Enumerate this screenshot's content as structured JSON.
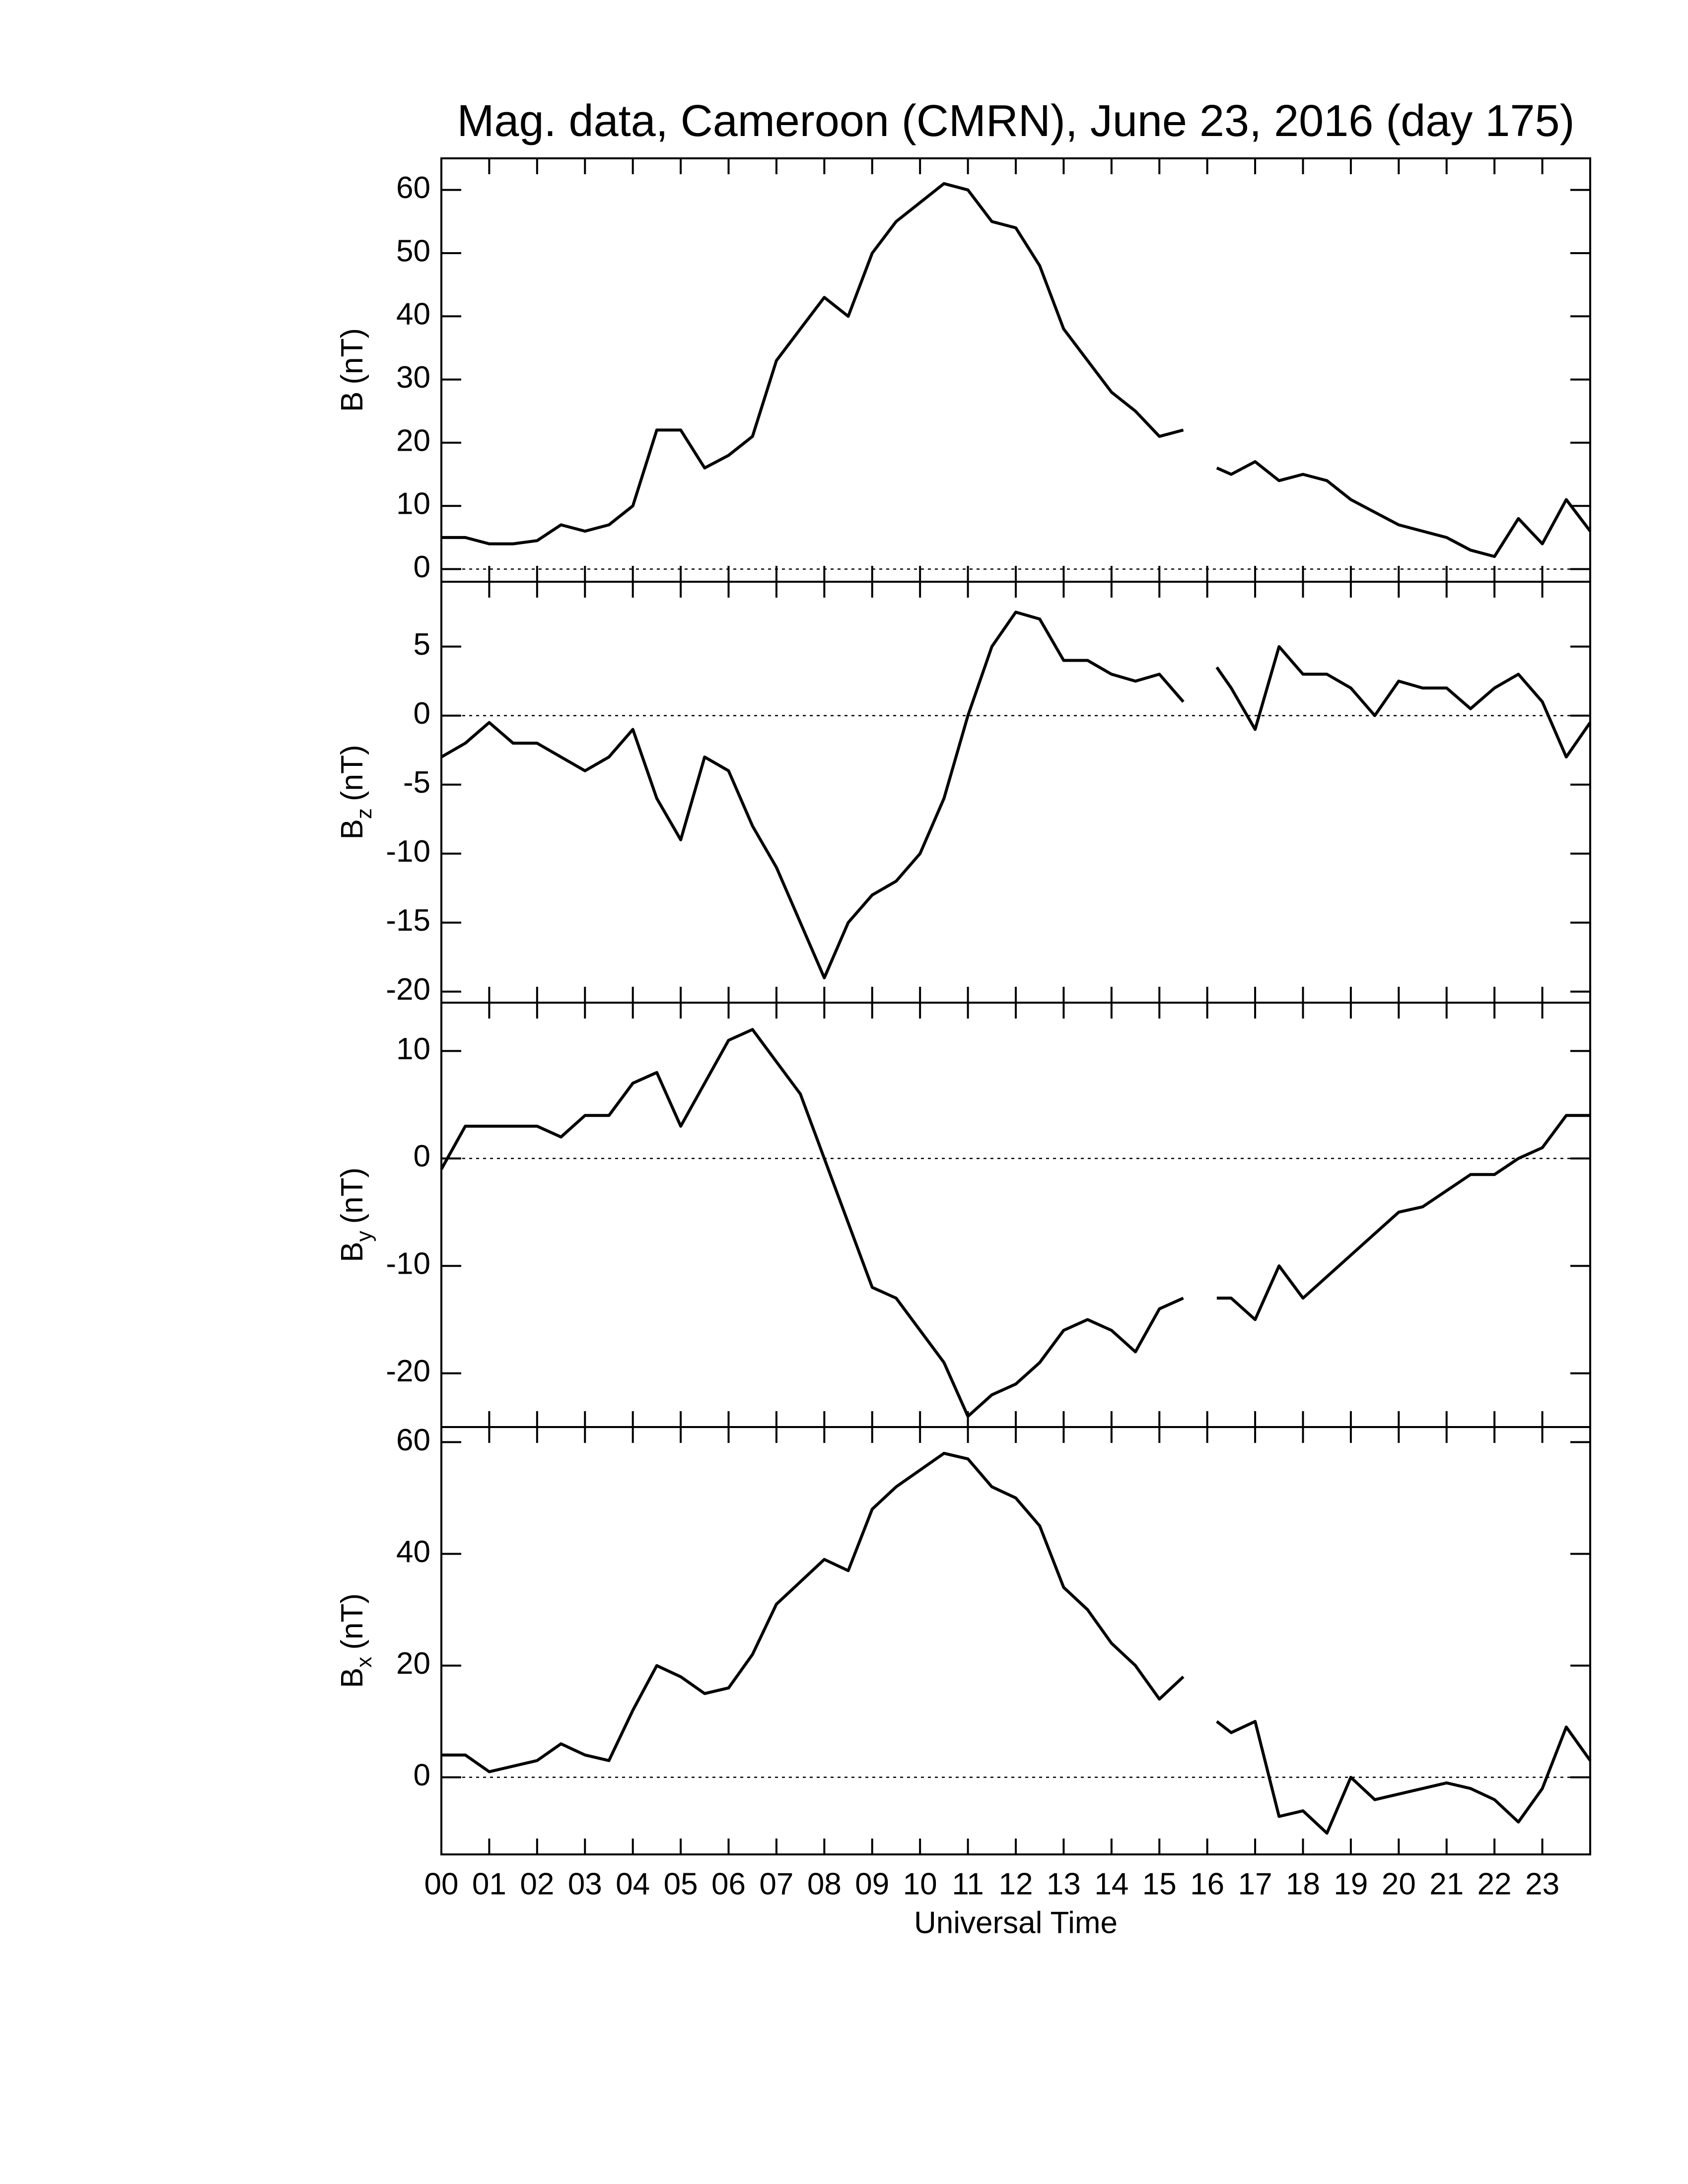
{
  "chart_data": [
    {
      "type": "line",
      "title": "Mag. data, Cameroon (CMRN), June 23, 2016 (day 175)",
      "ylabel": "B",
      "yunit": "(nT)",
      "color": "#000000",
      "x": [
        0,
        0.5,
        1,
        1.5,
        2,
        2.5,
        3,
        3.5,
        4,
        4.5,
        5,
        5.5,
        6,
        6.5,
        7,
        7.5,
        8,
        8.5,
        9,
        9.5,
        10,
        10.5,
        11,
        11.5,
        12,
        12.5,
        13,
        13.5,
        14,
        14.5,
        15,
        15.5,
        15.8,
        16.2,
        16.5,
        17,
        17.5,
        18,
        18.5,
        19,
        19.5,
        20,
        20.5,
        21,
        21.5,
        22,
        22.5,
        23,
        23.5,
        24
      ],
      "values": [
        5,
        5,
        4,
        4,
        4.5,
        7,
        6,
        7,
        10,
        22,
        22,
        16,
        18,
        21,
        33,
        38,
        43,
        40,
        50,
        55,
        58,
        61,
        60,
        55,
        54,
        48,
        38,
        33,
        28,
        25,
        21,
        22,
        null,
        16,
        15,
        17,
        14,
        15,
        14,
        11,
        9,
        7,
        6,
        5,
        3,
        2,
        8,
        4,
        11,
        6
      ],
      "xlim": [
        0,
        24
      ],
      "xticks": [
        0,
        1,
        2,
        3,
        4,
        5,
        6,
        7,
        8,
        9,
        10,
        11,
        12,
        13,
        14,
        15,
        16,
        17,
        18,
        19,
        20,
        21,
        22,
        23
      ],
      "ylim": [
        -2,
        65
      ],
      "yticks": [
        0,
        10,
        20,
        30,
        40,
        50,
        60
      ]
    },
    {
      "type": "line",
      "ylabel": "B",
      "ylabel_subscript": "z",
      "yunit": "(nT)",
      "color": "#000000",
      "x": [
        0,
        0.5,
        1,
        1.5,
        2,
        2.5,
        3,
        3.5,
        4,
        4.5,
        5,
        5.5,
        6,
        6.5,
        7,
        7.5,
        8,
        8.5,
        9,
        9.5,
        10,
        10.5,
        11,
        11.5,
        12,
        12.5,
        13,
        13.5,
        14,
        14.5,
        15,
        15.5,
        15.8,
        16.2,
        16.5,
        17,
        17.5,
        18,
        18.5,
        19,
        19.5,
        20,
        20.5,
        21,
        21.5,
        22,
        22.5,
        23,
        23.5,
        24
      ],
      "values": [
        -3,
        -2,
        -0.5,
        -2,
        -2,
        -3,
        -4,
        -3,
        -1,
        -6,
        -9,
        -3,
        -4,
        -8,
        -11,
        -15,
        -19,
        -15,
        -13,
        -12,
        -10,
        -6,
        0,
        5,
        7.5,
        7,
        4,
        4,
        3,
        2.5,
        3,
        1,
        null,
        3.5,
        2,
        -1,
        5,
        3,
        3,
        2,
        0,
        2.5,
        2,
        2,
        0.5,
        2,
        3,
        1,
        -3,
        -0.5
      ],
      "xlim": [
        0,
        24
      ],
      "xticks": [
        0,
        1,
        2,
        3,
        4,
        5,
        6,
        7,
        8,
        9,
        10,
        11,
        12,
        13,
        14,
        15,
        16,
        17,
        18,
        19,
        20,
        21,
        22,
        23
      ],
      "ylim": [
        -20.8,
        9.7
      ],
      "yticks": [
        -20,
        -15,
        -10,
        -5,
        0,
        5
      ]
    },
    {
      "type": "line",
      "ylabel": "B",
      "ylabel_subscript": "y",
      "yunit": "(nT)",
      "color": "#000000",
      "x": [
        0,
        0.5,
        1,
        1.5,
        2,
        2.5,
        3,
        3.5,
        4,
        4.5,
        5,
        5.5,
        6,
        6.5,
        7,
        7.5,
        8,
        8.5,
        9,
        9.5,
        10,
        10.5,
        11,
        11.5,
        12,
        12.5,
        13,
        13.5,
        14,
        14.5,
        15,
        15.5,
        15.8,
        16.2,
        16.5,
        17,
        17.5,
        18,
        18.5,
        19,
        19.5,
        20,
        20.5,
        21,
        21.5,
        22,
        22.5,
        23,
        23.5,
        24
      ],
      "values": [
        -1,
        3,
        3,
        3,
        3,
        2,
        4,
        4,
        7,
        8,
        3,
        7,
        11,
        12,
        9,
        6,
        0,
        -6,
        -12,
        -13,
        -16,
        -19,
        -24,
        -22,
        -21,
        -19,
        -16,
        -15,
        -16,
        -18,
        -14,
        -13,
        null,
        -13,
        -13,
        -15,
        -10,
        -13,
        -11,
        -9,
        -7,
        -5,
        -4.5,
        -3,
        -1.5,
        -1.5,
        0,
        1,
        4,
        4
      ],
      "xlim": [
        0,
        24
      ],
      "xticks": [
        0,
        1,
        2,
        3,
        4,
        5,
        6,
        7,
        8,
        9,
        10,
        11,
        12,
        13,
        14,
        15,
        16,
        17,
        18,
        19,
        20,
        21,
        22,
        23
      ],
      "ylim": [
        -25,
        14.5
      ],
      "yticks": [
        -20,
        -10,
        0,
        10
      ]
    },
    {
      "type": "line",
      "ylabel": "B",
      "ylabel_subscript": "x",
      "yunit": "(nT)",
      "xlabel": "Universal Time",
      "color": "#000000",
      "x": [
        0,
        0.5,
        1,
        1.5,
        2,
        2.5,
        3,
        3.5,
        4,
        4.5,
        5,
        5.5,
        6,
        6.5,
        7,
        7.5,
        8,
        8.5,
        9,
        9.5,
        10,
        10.5,
        11,
        11.5,
        12,
        12.5,
        13,
        13.5,
        14,
        14.5,
        15,
        15.5,
        15.8,
        16.2,
        16.5,
        17,
        17.5,
        18,
        18.5,
        19,
        19.5,
        20,
        20.5,
        21,
        21.5,
        22,
        22.5,
        23,
        23.5,
        24
      ],
      "values": [
        4,
        4,
        1,
        2,
        3,
        6,
        4,
        3,
        12,
        20,
        18,
        15,
        16,
        22,
        31,
        35,
        39,
        37,
        48,
        52,
        55,
        58,
        57,
        52,
        50,
        45,
        34,
        30,
        24,
        20,
        14,
        18,
        null,
        10,
        8,
        10,
        -7,
        -6,
        -10,
        0,
        -4,
        -3,
        -2,
        -1,
        -2,
        -4,
        -8,
        -2,
        9,
        3
      ],
      "xlim": [
        0,
        24
      ],
      "xticks": [
        {
          "value": 0,
          "label": "00"
        },
        {
          "value": 1,
          "label": "01"
        },
        {
          "value": 2,
          "label": "02"
        },
        {
          "value": 3,
          "label": "03"
        },
        {
          "value": 4,
          "label": "04"
        },
        {
          "value": 5,
          "label": "05"
        },
        {
          "value": 6,
          "label": "06"
        },
        {
          "value": 7,
          "label": "07"
        },
        {
          "value": 8,
          "label": "08"
        },
        {
          "value": 9,
          "label": "09"
        },
        {
          "value": 10,
          "label": "10"
        },
        {
          "value": 11,
          "label": "11"
        },
        {
          "value": 12,
          "label": "12"
        },
        {
          "value": 13,
          "label": "13"
        },
        {
          "value": 14,
          "label": "14"
        },
        {
          "value": 15,
          "label": "15"
        },
        {
          "value": 16,
          "label": "16"
        },
        {
          "value": 17,
          "label": "17"
        },
        {
          "value": 18,
          "label": "18"
        },
        {
          "value": 19,
          "label": "19"
        },
        {
          "value": 20,
          "label": "20"
        },
        {
          "value": 21,
          "label": "21"
        },
        {
          "value": 22,
          "label": "22"
        },
        {
          "value": 23,
          "label": "23"
        }
      ],
      "ylim": [
        -13.8,
        62.7
      ],
      "yticks": [
        0,
        20,
        40,
        60
      ]
    }
  ]
}
